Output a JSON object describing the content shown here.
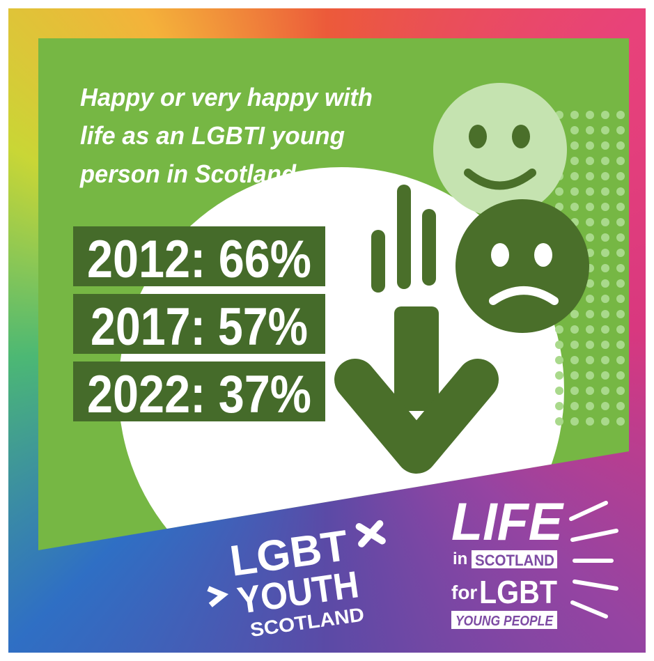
{
  "headline": {
    "lines": [
      "Happy or very happy with",
      "life as an LGBTI young",
      "person in Scotland"
    ]
  },
  "stats": [
    "2012: 66%",
    "2017: 57%",
    "2022: 37%"
  ],
  "logo_youth": {
    "lines": [
      "LGBT",
      "YOUTH",
      "SCOTLAND"
    ]
  },
  "logo_life": {
    "life": "LIFE",
    "in": "in",
    "scotland": "SCOTLAND",
    "for": "for",
    "lgbt": "LGBT",
    "young_people": "YOUNG PEOPLE"
  }
}
